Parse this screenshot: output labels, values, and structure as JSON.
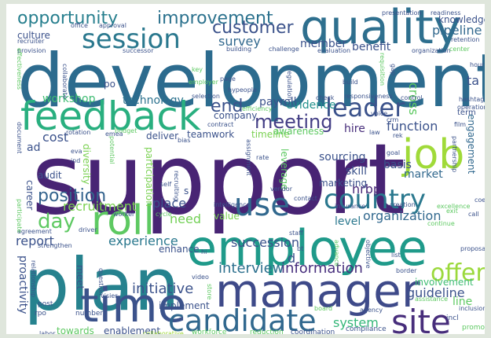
{
  "background": "#ffffff",
  "palette": [
    "#440154",
    "#3b528b",
    "#21918c",
    "#5ec962",
    "#fde725"
  ],
  "words": [
    {
      "text": "development",
      "color": "#2c6b8e"
    },
    {
      "text": "support",
      "color": "#482474"
    },
    {
      "text": "employee",
      "color": "#1f9a8a"
    },
    {
      "text": "plan",
      "color": "#26828e"
    },
    {
      "text": "manager",
      "color": "#3e4a89"
    },
    {
      "text": "quality",
      "color": "#2e6f8e"
    },
    {
      "text": "feedback",
      "color": "#29af7f"
    },
    {
      "text": "time",
      "color": "#3b528b"
    },
    {
      "text": "candidate",
      "color": "#31688e"
    },
    {
      "text": "site",
      "color": "#472d7b"
    },
    {
      "text": "roll",
      "color": "#5ec962"
    },
    {
      "text": "job",
      "color": "#a0da39"
    },
    {
      "text": "country",
      "color": "#2a788e"
    },
    {
      "text": "use",
      "color": "#31688e"
    },
    {
      "text": "session",
      "color": "#2a788e"
    },
    {
      "text": "leader",
      "color": "#3b528b"
    },
    {
      "text": "opportunity",
      "color": "#277f8e"
    },
    {
      "text": "improvement",
      "color": "#2c728e"
    },
    {
      "text": "customer",
      "color": "#3b528b"
    },
    {
      "text": "meeting",
      "color": "#433e85"
    },
    {
      "text": "position",
      "color": "#33638d"
    },
    {
      "text": "day",
      "color": "#5ec962"
    },
    {
      "text": "offer",
      "color": "#9bd93c"
    },
    {
      "text": "end",
      "color": "#3b528b"
    },
    {
      "text": "initiative",
      "color": "#3b528b"
    },
    {
      "text": "interview",
      "color": "#2d708e"
    },
    {
      "text": "information",
      "color": "#472f7d"
    },
    {
      "text": "succession",
      "color": "#3b528b"
    },
    {
      "text": "experience",
      "color": "#2a788e"
    },
    {
      "text": "recruitment",
      "color": "#7ad151"
    },
    {
      "text": "place",
      "color": "#3b528b"
    },
    {
      "text": "guideline",
      "color": "#3b528b"
    },
    {
      "text": "pipeline",
      "color": "#31688e"
    },
    {
      "text": "survey",
      "color": "#31688e"
    },
    {
      "text": "evidence",
      "color": "#21918c"
    },
    {
      "text": "function",
      "color": "#3b528b"
    },
    {
      "text": "market",
      "color": "#31688e"
    },
    {
      "text": "organization",
      "color": "#31688e"
    },
    {
      "text": "report",
      "color": "#3b528b"
    },
    {
      "text": "system",
      "color": "#35b779"
    },
    {
      "text": "technology",
      "color": "#2c728e"
    },
    {
      "text": "workshop",
      "color": "#3fbc73"
    },
    {
      "text": "benefit",
      "color": "#3b528b"
    },
    {
      "text": "member",
      "color": "#3b528b"
    },
    {
      "text": "payroll",
      "color": "#3b528b"
    },
    {
      "text": "cost",
      "color": "#3b528b"
    },
    {
      "text": "hire",
      "color": "#472d7b"
    },
    {
      "text": "hrbp",
      "color": "#482878"
    },
    {
      "text": "level",
      "color": "#2a788e"
    },
    {
      "text": "sourcing",
      "color": "#3b528b"
    },
    {
      "text": "skill",
      "color": "#3b528b"
    },
    {
      "text": "basis",
      "color": "#3b528b"
    },
    {
      "text": "marketing",
      "color": "#3b528b"
    },
    {
      "text": "need",
      "color": "#73d056"
    },
    {
      "text": "leverage",
      "color": "#5ec962"
    },
    {
      "text": "line",
      "color": "#5ec962"
    },
    {
      "text": "cross",
      "color": "#5ec962"
    },
    {
      "text": "ta",
      "color": "#3b528b"
    },
    {
      "text": "engagement",
      "color": "#31688e"
    },
    {
      "text": "involvement",
      "color": "#3fbc73"
    },
    {
      "text": "proactivity",
      "color": "#3b528b"
    },
    {
      "text": "enablement",
      "color": "#3b528b"
    },
    {
      "text": "towards",
      "color": "#5ec962"
    },
    {
      "text": "implement",
      "color": "#3b528b"
    },
    {
      "text": "enhance",
      "color": "#3b528b"
    },
    {
      "text": "teamwork",
      "color": "#3b528b"
    },
    {
      "text": "deliver",
      "color": "#3b528b"
    },
    {
      "text": "timeline",
      "color": "#7ad151"
    },
    {
      "text": "awareness",
      "color": "#5ec962"
    },
    {
      "text": "company",
      "color": "#3b528b"
    },
    {
      "text": "diversity",
      "color": "#7ad151"
    },
    {
      "text": "participation",
      "color": "#7ad151"
    },
    {
      "text": "audit",
      "color": "#3b528b"
    },
    {
      "text": "career",
      "color": "#3b528b"
    },
    {
      "text": "culture",
      "color": "#3b528b"
    },
    {
      "text": "knowledge",
      "color": "#3b528b"
    },
    {
      "text": "value",
      "color": "#7ad151"
    },
    {
      "text": "ad",
      "color": "#3b528b"
    },
    {
      "text": "po",
      "color": "#3b528b"
    },
    {
      "text": "meet",
      "color": "#3b528b"
    },
    {
      "text": "s",
      "color": "#3b528b"
    },
    {
      "text": "d",
      "color": "#3b528b"
    },
    {
      "text": "workforce",
      "color": "#5ec962"
    },
    {
      "text": "reduction",
      "color": "#5ec962"
    },
    {
      "text": "coordination",
      "color": "#3b528b"
    },
    {
      "text": "compliance",
      "color": "#3b528b"
    },
    {
      "text": "incl",
      "color": "#3b528b"
    },
    {
      "text": "promote",
      "color": "#5ec962"
    },
    {
      "text": "collaborative",
      "color": "#a0da39"
    },
    {
      "text": "labor",
      "color": "#3b528b"
    },
    {
      "text": "rpo",
      "color": "#3b528b"
    },
    {
      "text": "post",
      "color": "#3b528b"
    },
    {
      "text": "number",
      "color": "#3b528b"
    },
    {
      "text": "visier",
      "color": "#3b528b"
    },
    {
      "text": "question",
      "color": "#3b528b"
    },
    {
      "text": "strengthen",
      "color": "#3b528b"
    },
    {
      "text": "agreement",
      "color": "#3b528b"
    },
    {
      "text": "driver",
      "color": "#3b528b"
    },
    {
      "text": "worker",
      "color": "#3b528b"
    },
    {
      "text": "cycle",
      "color": "#5ec962"
    },
    {
      "text": "self",
      "color": "#3b528b"
    },
    {
      "text": "recruiting",
      "color": "#3b528b"
    },
    {
      "text": "intelligence",
      "color": "#3b528b"
    },
    {
      "text": "vendor",
      "color": "#3b528b"
    },
    {
      "text": "rate",
      "color": "#3b528b"
    },
    {
      "text": "assignment",
      "color": "#3b528b"
    },
    {
      "text": "contact",
      "color": "#3b528b"
    },
    {
      "text": "insurance",
      "color": "#3b528b"
    },
    {
      "text": "creation",
      "color": "#3b528b"
    },
    {
      "text": "excellence",
      "color": "#5ec962"
    },
    {
      "text": "exit",
      "color": "#5ec962"
    },
    {
      "text": "continue",
      "color": "#5ec962"
    },
    {
      "text": "call",
      "color": "#3b528b"
    },
    {
      "text": "coe",
      "color": "#3b528b"
    },
    {
      "text": "proposal",
      "color": "#3b528b"
    },
    {
      "text": "list",
      "color": "#3b528b"
    },
    {
      "text": "border",
      "color": "#3b528b"
    },
    {
      "text": "inclusion",
      "color": "#3b528b"
    },
    {
      "text": "assistance",
      "color": "#5ec962"
    },
    {
      "text": "agency",
      "color": "#3b528b"
    },
    {
      "text": "staff",
      "color": "#3b528b"
    },
    {
      "text": "objective",
      "color": "#3b528b"
    },
    {
      "text": "goal",
      "color": "#3b528b"
    },
    {
      "text": "rotation",
      "color": "#3b528b"
    },
    {
      "text": "budget",
      "color": "#5ec962"
    },
    {
      "text": "eva",
      "color": "#3b528b"
    },
    {
      "text": "ind",
      "color": "#3b528b"
    },
    {
      "text": "potential",
      "color": "#5ec962"
    },
    {
      "text": "bias",
      "color": "#3b528b"
    },
    {
      "text": "emea",
      "color": "#3b528b"
    },
    {
      "text": "contract",
      "color": "#3b528b"
    },
    {
      "text": "check",
      "color": "#3b528b"
    },
    {
      "text": "responsiveness",
      "color": "#3b528b"
    },
    {
      "text": "control",
      "color": "#3b528b"
    },
    {
      "text": "selection",
      "color": "#3b528b"
    },
    {
      "text": "efficiency",
      "color": "#5ec962"
    },
    {
      "text": "page",
      "color": "#3b528b"
    },
    {
      "text": "employer",
      "color": "#5ec962"
    },
    {
      "text": "key",
      "color": "#5ec962"
    },
    {
      "text": "successor",
      "color": "#3b528b"
    },
    {
      "text": "building",
      "color": "#3b528b"
    },
    {
      "text": "challenge",
      "color": "#3b528b"
    },
    {
      "text": "evaluation",
      "color": "#3b528b"
    },
    {
      "text": "organization",
      "color": "#3b528b"
    },
    {
      "text": "center",
      "color": "#5ec962"
    },
    {
      "text": "retention",
      "color": "#3b528b"
    },
    {
      "text": "recruiter",
      "color": "#3b528b"
    },
    {
      "text": "provision",
      "color": "#3b528b"
    },
    {
      "text": "office",
      "color": "#3b528b"
    },
    {
      "text": "approval",
      "color": "#3b528b"
    },
    {
      "text": "presentation",
      "color": "#3b528b"
    },
    {
      "text": "readiness",
      "color": "#3b528b"
    },
    {
      "text": "hour",
      "color": "#3b528b"
    },
    {
      "text": "hashtags",
      "color": "#3b528b"
    },
    {
      "text": "operation",
      "color": "#3b528b"
    },
    {
      "text": "term",
      "color": "#3b528b"
    },
    {
      "text": "film",
      "color": "#3b528b"
    },
    {
      "text": "voice",
      "color": "#3b528b"
    },
    {
      "text": "law",
      "color": "#3b528b"
    },
    {
      "text": "rek",
      "color": "#3b528b"
    },
    {
      "text": "crm",
      "color": "#3b528b"
    },
    {
      "text": "partnership",
      "color": "#3b528b"
    },
    {
      "text": "document",
      "color": "#3b528b"
    },
    {
      "text": "participate",
      "color": "#5ec962"
    },
    {
      "text": "effectiveness",
      "color": "#5ec962"
    },
    {
      "text": "relationship",
      "color": "#3b528b"
    },
    {
      "text": "hi",
      "color": "#3b528b"
    },
    {
      "text": "bt",
      "color": "#3b528b"
    },
    {
      "text": "video",
      "color": "#3b528b"
    },
    {
      "text": "store",
      "color": "#5ec962"
    },
    {
      "text": "advance",
      "color": "#5ec962"
    },
    {
      "text": "board",
      "color": "#5ec962"
    },
    {
      "text": "gap",
      "color": "#3b528b"
    },
    {
      "text": "requisition",
      "color": "#5ec962"
    },
    {
      "text": "regulation",
      "color": "#3b528b"
    },
    {
      "text": "collaborate",
      "color": "#3b528b"
    },
    {
      "text": "hypeople",
      "color": "#3b528b"
    },
    {
      "text": "build",
      "color": "#3b528b"
    }
  ]
}
